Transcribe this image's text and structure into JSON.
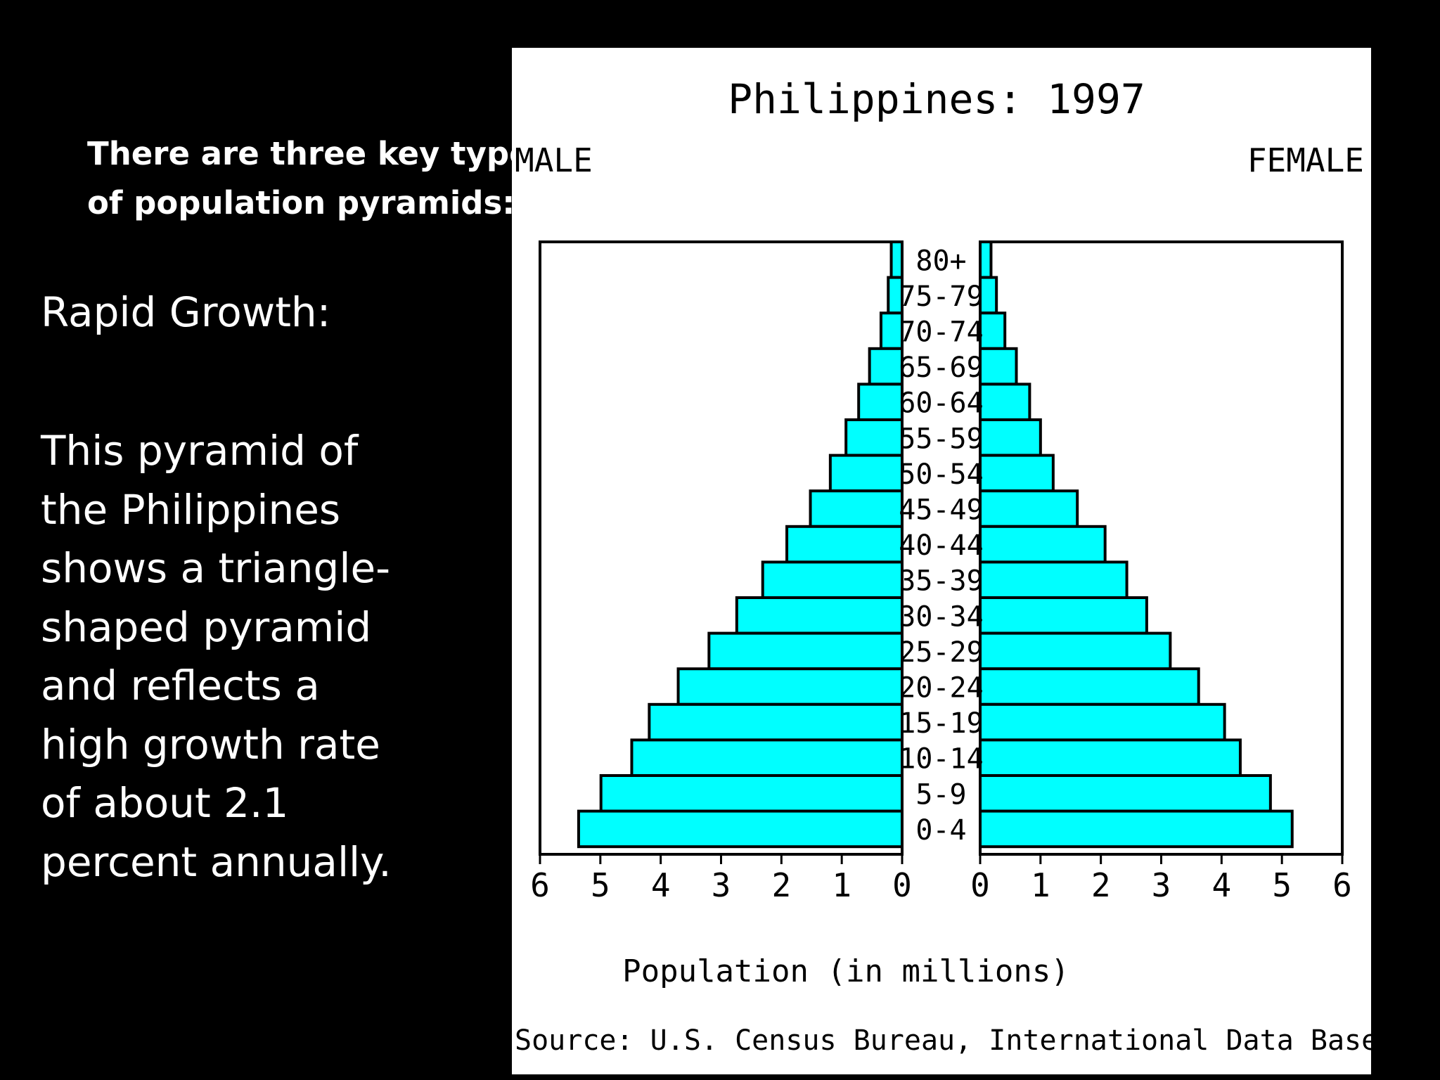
{
  "slide": {
    "heading_lines": [
      "There are three key types",
      "of population pyramids:"
    ],
    "subheading": "Rapid Growth:",
    "body_lines": [
      "This pyramid of",
      "the Philippines",
      "shows a triangle-",
      "shaped pyramid",
      "and reflects a",
      "high growth rate",
      "of about 2.1",
      "percent annually."
    ]
  },
  "colors": {
    "slide_background": "#000000",
    "chart_background": "#ffffff",
    "bar_fill": "#00ffff",
    "ink": "#000000"
  },
  "chart_data": {
    "type": "bar",
    "orientation": "horizontal",
    "layout": "population-pyramid",
    "title": "Philippines: 1997",
    "left_label": "MALE",
    "right_label": "FEMALE",
    "xlabel": "Population (in millions)",
    "xlim": [
      0,
      6
    ],
    "x_ticks": [
      "6",
      "5",
      "4",
      "3",
      "2",
      "1",
      "0",
      "0",
      "1",
      "2",
      "3",
      "4",
      "5",
      "6"
    ],
    "source": "Source: U.S. Census Bureau, International Data Base.",
    "categories": [
      "80+",
      "75-79",
      "70-74",
      "65-69",
      "60-64",
      "55-59",
      "50-54",
      "45-49",
      "40-44",
      "35-39",
      "30-34",
      "25-29",
      "20-24",
      "15-19",
      "10-14",
      "5-9",
      "0-4"
    ],
    "series": [
      {
        "name": "MALE",
        "values": [
          0.18,
          0.23,
          0.35,
          0.54,
          0.72,
          0.93,
          1.19,
          1.52,
          1.91,
          2.31,
          2.74,
          3.2,
          3.71,
          4.19,
          4.48,
          4.99,
          5.36
        ]
      },
      {
        "name": "FEMALE",
        "values": [
          0.18,
          0.27,
          0.41,
          0.6,
          0.82,
          1.0,
          1.21,
          1.61,
          2.07,
          2.43,
          2.76,
          3.15,
          3.62,
          4.05,
          4.31,
          4.81,
          5.17
        ]
      }
    ],
    "grid": false,
    "legend": "none"
  }
}
